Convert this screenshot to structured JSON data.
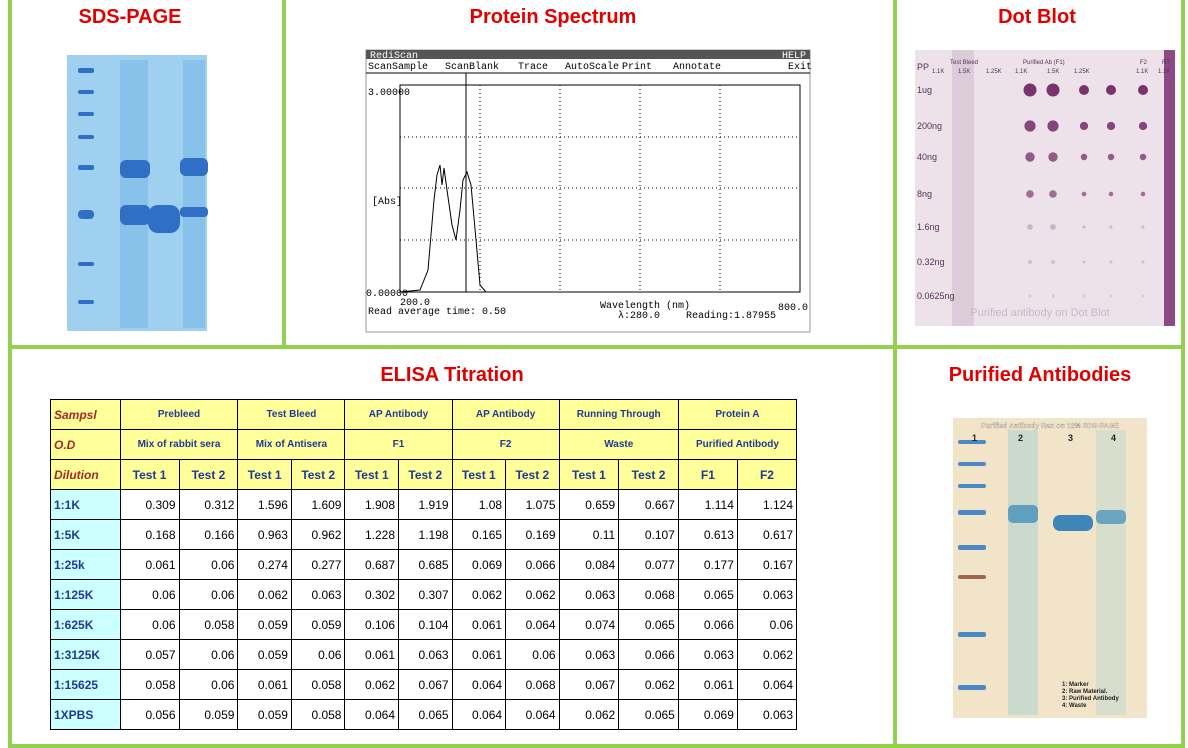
{
  "panels": {
    "sds_page": {
      "title": "SDS-PAGE"
    },
    "protein_spectrum": {
      "title": "Protein Spectrum",
      "menu": [
        "RediScan",
        "HELP"
      ],
      "commands": [
        "ScanSample",
        "ScanBlank",
        "Trace",
        "AutoScale",
        "Print",
        "Annotate",
        "Exit"
      ],
      "y_top": "3.00000",
      "y_label": "[Abs]",
      "y_bottom": "0.00000",
      "x_start": "200.0",
      "x_end": "800.0",
      "x_label": "Wavelength (nm)",
      "read_time": "Read average time: 0.50",
      "lambda": "λ:280.0",
      "reading": "Reading:1.87955"
    },
    "dot_blot": {
      "title": "Dot Blot",
      "groups": [
        "PP",
        "Test Bleed",
        "Purified Ab (F1)",
        "F2",
        "RT"
      ],
      "dilutions": [
        "1.1K",
        "1.5K",
        "1.25K",
        "1.1K",
        "1.5K",
        "1.25K",
        "1.1K",
        "1.1K"
      ],
      "amounts": [
        "1ug",
        "200ng",
        "40ng",
        "8ng",
        "1.6ng",
        "0.32ng",
        "0.0625ng"
      ],
      "caption": "Purified antibody on Dot Blot"
    },
    "elisa": {
      "title": "ELISA Titration"
    },
    "purified_antibodies": {
      "title": "Purified Antibodies",
      "caption": "Purified Antibody Ran on 12% SDS-PAGE",
      "lanes": [
        "1",
        "2",
        "3",
        "4"
      ],
      "legend": [
        "1: Marker",
        "2: Raw Material.",
        "3: Purified Antibody",
        "4: Waste"
      ]
    }
  },
  "table": {
    "corner": [
      "Sampsl",
      "O.D",
      "Dilution"
    ],
    "groups": [
      "Prebleed",
      "Test Bleed",
      "AP Antibody",
      "AP Antibody",
      "Running Through",
      "Protein A"
    ],
    "subgroups": [
      "Mix of rabbit sera",
      "Mix of Antisera",
      "F1",
      "F2",
      "Waste",
      "Purified Antibody"
    ],
    "columns": [
      "Test 1",
      "Test 2",
      "Test 1",
      "Test 2",
      "Test 1",
      "Test 2",
      "Test 1",
      "Test 2",
      "Test 1",
      "Test 2",
      "F1",
      "F2"
    ],
    "rows": [
      {
        "label": "1:1K",
        "values": [
          0.309,
          0.312,
          1.596,
          1.609,
          1.908,
          1.919,
          1.08,
          1.075,
          0.659,
          0.667,
          1.114,
          1.124
        ]
      },
      {
        "label": "1:5K",
        "values": [
          0.168,
          0.166,
          0.963,
          0.962,
          1.228,
          1.198,
          0.165,
          0.169,
          0.11,
          0.107,
          0.613,
          0.617
        ]
      },
      {
        "label": "1:25k",
        "values": [
          0.061,
          0.06,
          0.274,
          0.277,
          0.687,
          0.685,
          0.069,
          0.066,
          0.084,
          0.077,
          0.177,
          0.167
        ]
      },
      {
        "label": "1:125K",
        "values": [
          0.06,
          0.06,
          0.062,
          0.063,
          0.302,
          0.307,
          0.062,
          0.062,
          0.063,
          0.068,
          0.065,
          0.063
        ]
      },
      {
        "label": "1:625K",
        "values": [
          0.06,
          0.058,
          0.059,
          0.059,
          0.106,
          0.104,
          0.061,
          0.064,
          0.074,
          0.065,
          0.066,
          0.06
        ]
      },
      {
        "label": "1:3125K",
        "values": [
          0.057,
          0.06,
          0.059,
          0.06,
          0.061,
          0.063,
          0.061,
          0.06,
          0.063,
          0.066,
          0.063,
          0.062
        ]
      },
      {
        "label": "1:15625",
        "values": [
          0.058,
          0.06,
          0.061,
          0.058,
          0.062,
          0.067,
          0.064,
          0.068,
          0.067,
          0.062,
          0.061,
          0.064
        ]
      },
      {
        "label": "1XPBS",
        "values": [
          0.056,
          0.059,
          0.059,
          0.058,
          0.064,
          0.065,
          0.064,
          0.064,
          0.062,
          0.065,
          0.069,
          0.063
        ]
      }
    ]
  }
}
